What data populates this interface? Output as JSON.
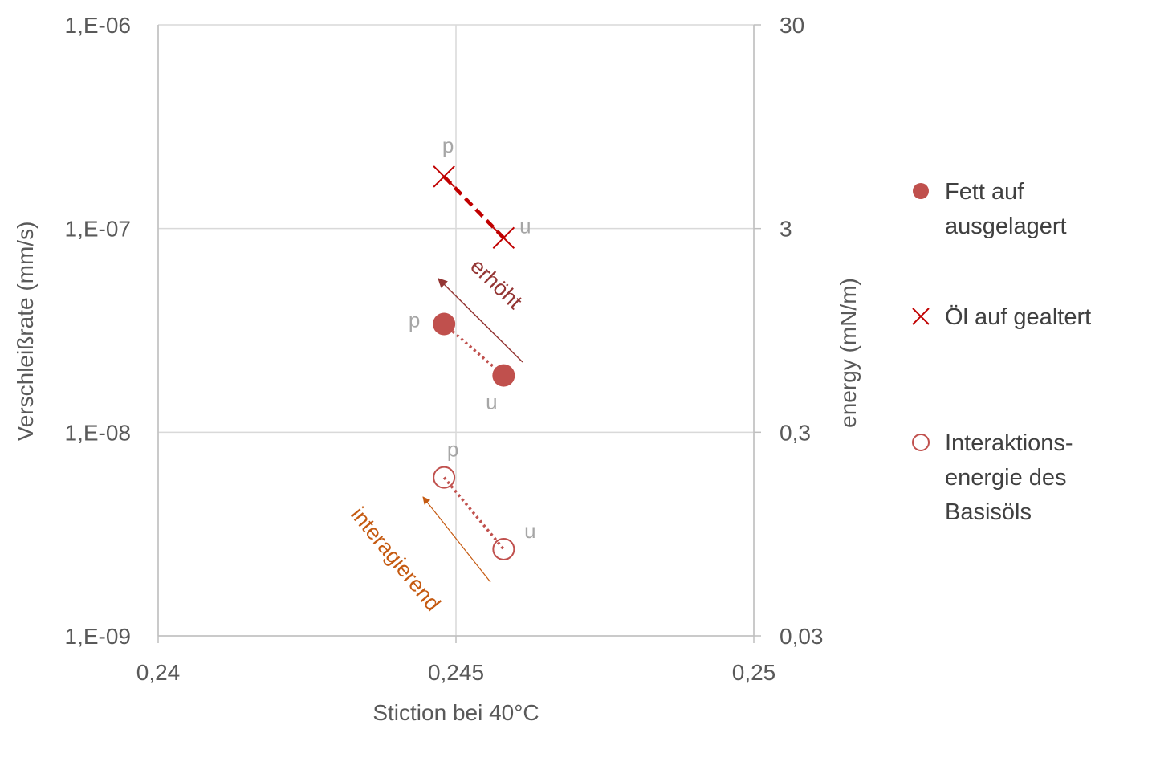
{
  "chart_data": {
    "type": "scatter",
    "x_axis": {
      "label": "Stiction bei 40°C",
      "range": [
        0.24,
        0.25
      ],
      "ticks": [
        "0,24",
        "0,245",
        "0,25"
      ],
      "tick_values": [
        0.24,
        0.245,
        0.25
      ]
    },
    "y_axis_left": {
      "label": "Verschleißrate (mm/s)",
      "scale": "log",
      "range": [
        1e-09,
        1e-06
      ],
      "ticks": [
        "1,E-09",
        "1,E-08",
        "1,E-07",
        "1,E-06"
      ],
      "tick_values": [
        1e-09,
        1e-08,
        1e-07,
        1e-06
      ]
    },
    "y_axis_right": {
      "label": "energy (mN/m)",
      "scale": "log",
      "range": [
        0.03,
        30
      ],
      "ticks": [
        "0,03",
        "0,3",
        "3",
        "30"
      ],
      "tick_values": [
        0.03,
        0.3,
        3,
        30
      ]
    },
    "grid": true,
    "legend_position": "right",
    "series": [
      {
        "name": "Fett auf ausgelagert",
        "legend_lines": [
          "Fett auf",
          "ausgelagert"
        ],
        "marker": "filled-circle",
        "color": "#c0504d",
        "connector": "dotted",
        "axis": "left",
        "points": [
          {
            "label": "p",
            "x": 0.2448,
            "y": 3.4e-08
          },
          {
            "label": "u",
            "x": 0.2458,
            "y": 1.9e-08
          }
        ]
      },
      {
        "name": "Öl auf gealtert",
        "legend_lines": [
          "Öl auf gealtert"
        ],
        "marker": "x",
        "color": "#c00000",
        "connector": "dashed",
        "axis": "left",
        "points": [
          {
            "label": "p",
            "x": 0.2448,
            "y": 1.8e-07
          },
          {
            "label": "u",
            "x": 0.2458,
            "y": 9e-08
          }
        ]
      },
      {
        "name": "Interaktionsenergie des Basisöls",
        "legend_lines": [
          "Interaktions-",
          "energie des",
          "Basisöls"
        ],
        "marker": "open-circle",
        "color": "#c0504d",
        "connector": "dotted",
        "axis": "right",
        "points": [
          {
            "label": "p",
            "x": 0.2448,
            "y": 0.18
          },
          {
            "label": "u",
            "x": 0.2458,
            "y": 0.08
          }
        ]
      }
    ],
    "annotations": [
      {
        "text": "erhöht",
        "color": "#943634"
      },
      {
        "text": "interagierend",
        "color": "#c55a11"
      }
    ]
  }
}
